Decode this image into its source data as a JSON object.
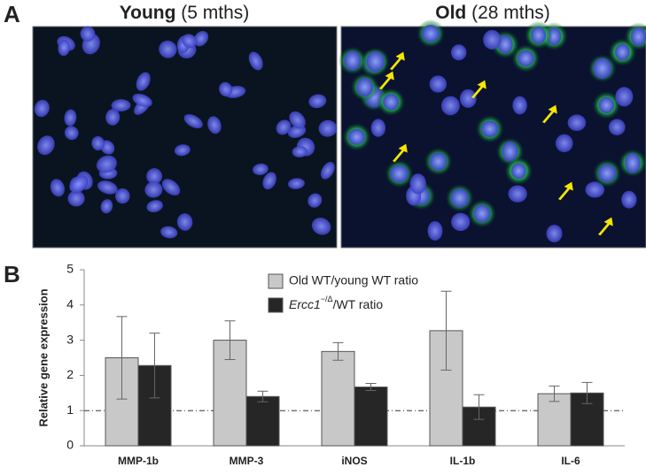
{
  "panel_labels": [
    "A",
    "B"
  ],
  "images": [
    {
      "title": "Young",
      "subtitle": "(5 mths)"
    },
    {
      "title": "Old",
      "subtitle": "(28 mths)"
    }
  ],
  "chart_data": {
    "type": "bar",
    "ylabel": "Relative gene expression",
    "categories": [
      "MMP-1b",
      "MMP-3",
      "iNOS",
      "IL-1b",
      "IL-6"
    ],
    "series": [
      {
        "name": "Old WT/young WT ratio",
        "color": "#c8c8c8",
        "values": [
          2.5,
          3.0,
          2.68,
          3.27,
          1.48
        ],
        "errors": [
          1.17,
          0.55,
          0.25,
          1.12,
          0.22
        ]
      },
      {
        "name": "Ercc1−/Δ/WT ratio",
        "color": "#262626",
        "values": [
          2.28,
          1.4,
          1.67,
          1.1,
          1.5
        ],
        "errors": [
          0.92,
          0.15,
          0.1,
          0.35,
          0.3
        ]
      }
    ],
    "ylim": [
      0,
      5
    ],
    "yticks": [
      0,
      1,
      2,
      3,
      4,
      5
    ],
    "grid": false,
    "reference_line": 1
  }
}
